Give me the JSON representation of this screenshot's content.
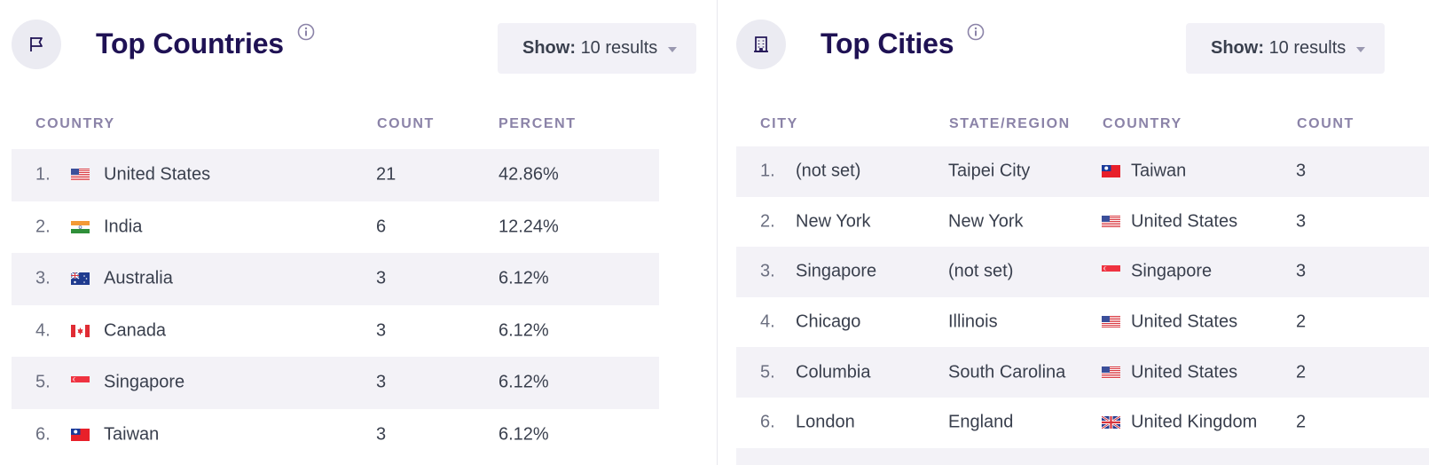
{
  "countries": {
    "title": "Top Countries",
    "show": {
      "label": "Show:",
      "value": "10 results"
    },
    "columns": {
      "country": "COUNTRY",
      "count": "COUNT",
      "percent": "PERCENT"
    },
    "rows": [
      {
        "rank": "1.",
        "flag": "us",
        "country": "United States",
        "count": "21",
        "percent": "42.86%"
      },
      {
        "rank": "2.",
        "flag": "in",
        "country": "India",
        "count": "6",
        "percent": "12.24%"
      },
      {
        "rank": "3.",
        "flag": "au",
        "country": "Australia",
        "count": "3",
        "percent": "6.12%"
      },
      {
        "rank": "4.",
        "flag": "ca",
        "country": "Canada",
        "count": "3",
        "percent": "6.12%"
      },
      {
        "rank": "5.",
        "flag": "sg",
        "country": "Singapore",
        "count": "3",
        "percent": "6.12%"
      },
      {
        "rank": "6.",
        "flag": "tw",
        "country": "Taiwan",
        "count": "3",
        "percent": "6.12%"
      }
    ]
  },
  "cities": {
    "title": "Top Cities",
    "show": {
      "label": "Show:",
      "value": "10 results"
    },
    "columns": {
      "city": "CITY",
      "region": "STATE/REGION",
      "country": "COUNTRY",
      "count": "COUNT"
    },
    "rows": [
      {
        "rank": "1.",
        "city": "(not set)",
        "region": "Taipei City",
        "flag": "tw",
        "country": "Taiwan",
        "count": "3"
      },
      {
        "rank": "2.",
        "city": "New York",
        "region": "New York",
        "flag": "us",
        "country": "United States",
        "count": "3"
      },
      {
        "rank": "3.",
        "city": "Singapore",
        "region": "(not set)",
        "flag": "sg",
        "country": "Singapore",
        "count": "3"
      },
      {
        "rank": "4.",
        "city": "Chicago",
        "region": "Illinois",
        "flag": "us",
        "country": "United States",
        "count": "2"
      },
      {
        "rank": "5.",
        "city": "Columbia",
        "region": "South Carolina",
        "flag": "us",
        "country": "United States",
        "count": "2"
      },
      {
        "rank": "6.",
        "city": "London",
        "region": "England",
        "flag": "gb",
        "country": "United Kingdom",
        "count": "2"
      }
    ]
  },
  "icons": {
    "countries": "flag-icon",
    "cities": "building-icon",
    "info": "info-icon"
  },
  "colors": {
    "title": "#1f1254",
    "column_header": "#8b83a8",
    "row_alt": "#f3f2f7",
    "button_bg": "#f2f1f7",
    "icon_circle": "#ebebf2"
  }
}
